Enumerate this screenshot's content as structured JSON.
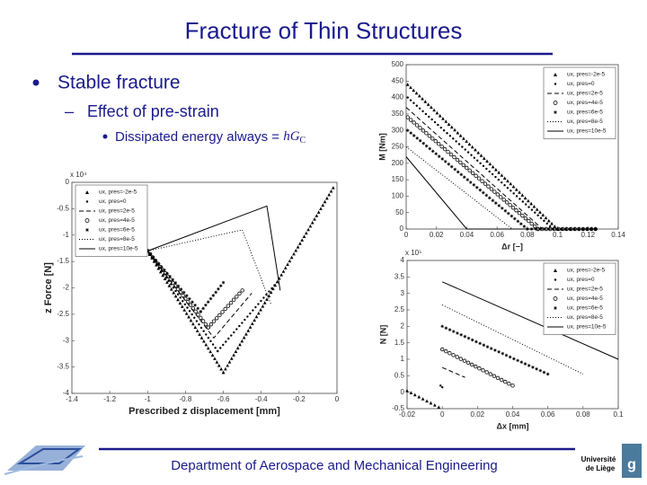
{
  "slide": {
    "title": "Fracture of Thin Structures",
    "bullet1": "Stable fracture",
    "bullet2": "Effect of pre-strain",
    "bullet3": {
      "text": "Dissipated energy always = ",
      "base": "hG",
      "sub": "C"
    },
    "footer": "Department of Aerospace and Mechanical Engineering",
    "logo_right": [
      "Université",
      "de Liège"
    ]
  },
  "chart_data": [
    {
      "type": "line",
      "xlabel": "Δr [−]",
      "ylabel": "M [Nm]",
      "xlim": [
        0,
        0.14
      ],
      "ylim": [
        0,
        500
      ],
      "xticks": [
        0,
        0.02,
        0.04,
        0.06,
        0.08,
        0.1,
        0.12,
        0.14
      ],
      "yticks": [
        0,
        50,
        100,
        150,
        200,
        250,
        300,
        350,
        400,
        450,
        500
      ],
      "legend": "upper right",
      "series": [
        {
          "name": "ux, pres=-2e-5",
          "color": "#000000",
          "marker": "triangle",
          "line": "none",
          "x": [
            0.001,
            0.1,
            0.125
          ],
          "values": [
            440,
            0,
            0
          ]
        },
        {
          "name": "ux, pres=0",
          "color": "#000000",
          "marker": "dot",
          "line": "none",
          "x": [
            0.001,
            0.097,
            0.125
          ],
          "values": [
            400,
            0,
            0
          ]
        },
        {
          "name": "ux, pres=2e-5",
          "color": "#000000",
          "marker": "none",
          "line": "dashed",
          "x": [
            0,
            0.09,
            0.125
          ],
          "values": [
            370,
            0,
            0
          ]
        },
        {
          "name": "ux, pres=4e-5",
          "color": "#000000",
          "marker": "circle",
          "line": "none",
          "x": [
            0.001,
            0.087,
            0.125
          ],
          "values": [
            340,
            0,
            0
          ]
        },
        {
          "name": "ux, pres=6e-5",
          "color": "#000000",
          "marker": "star",
          "line": "none",
          "x": [
            0.001,
            0.08,
            0.125
          ],
          "values": [
            300,
            0,
            0
          ]
        },
        {
          "name": "ux, pres=8e-5",
          "color": "#000000",
          "marker": "none",
          "line": "dotted",
          "x": [
            0,
            0.07,
            0.125
          ],
          "values": [
            250,
            0,
            0
          ]
        },
        {
          "name": "ux, pres=10e-5",
          "color": "#000000",
          "marker": "none",
          "line": "solid",
          "x": [
            0,
            0.04,
            0.125
          ],
          "values": [
            220,
            0,
            0
          ]
        }
      ]
    },
    {
      "type": "line",
      "xlabel": "Δx [mm]",
      "ylabel": "N [N]",
      "exponent": "x 10⁵",
      "xlim": [
        -0.02,
        0.1
      ],
      "ylim": [
        -0.5,
        4
      ],
      "xticks": [
        -0.02,
        0,
        0.02,
        0.04,
        0.06,
        0.08,
        0.1
      ],
      "yticks": [
        -0.5,
        0,
        0.5,
        1,
        1.5,
        2,
        2.5,
        3,
        3.5,
        4
      ],
      "legend": "upper right",
      "series": [
        {
          "name": "ux, pres=-2e-5",
          "color": "#000000",
          "marker": "triangle",
          "line": "none",
          "x": [
            -0.02,
            -0.002
          ],
          "values": [
            0.05,
            -0.45
          ]
        },
        {
          "name": "ux, pres=0",
          "color": "#000000",
          "marker": "dot",
          "line": "none",
          "x": [
            -0.001,
            0
          ],
          "values": [
            0.2,
            0.15
          ]
        },
        {
          "name": "ux, pres=2e-5",
          "color": "#000000",
          "marker": "none",
          "line": "dashed",
          "x": [
            0,
            0.013
          ],
          "values": [
            0.75,
            0.45
          ]
        },
        {
          "name": "ux, pres=4e-5",
          "color": "#000000",
          "marker": "circle",
          "line": "none",
          "x": [
            0,
            0.04
          ],
          "values": [
            1.3,
            0.2
          ]
        },
        {
          "name": "ux, pres=6e-5",
          "color": "#000000",
          "marker": "star",
          "line": "none",
          "x": [
            0,
            0.06
          ],
          "values": [
            2.0,
            0.55
          ]
        },
        {
          "name": "ux, pres=8e-5",
          "color": "#000000",
          "marker": "none",
          "line": "dotted",
          "x": [
            0,
            0.08
          ],
          "values": [
            2.65,
            0.55
          ]
        },
        {
          "name": "ux, pres=10e-5",
          "color": "#000000",
          "marker": "none",
          "line": "solid",
          "x": [
            0,
            0.1
          ],
          "values": [
            3.35,
            1.0
          ]
        }
      ]
    },
    {
      "type": "line",
      "xlabel": "Prescribed z displacement [mm]",
      "ylabel": "z Force [N]",
      "exponent": "x 10⁴",
      "xlim": [
        -1.4,
        0
      ],
      "ylim": [
        -4,
        0
      ],
      "xticks": [
        -1.4,
        -1.2,
        -1,
        -0.8,
        -0.6,
        -0.4,
        -0.2,
        0
      ],
      "yticks": [
        0,
        -0.5,
        -1,
        -1.5,
        -2,
        -2.5,
        -3,
        -3.5,
        -4
      ],
      "legend": "upper left",
      "series": [
        {
          "name": "ux, pres=-2e-5",
          "color": "#000000",
          "marker": "triangle",
          "line": "none",
          "x": [
            -1.0,
            -0.6,
            -0.02
          ],
          "values": [
            -1.3,
            -3.6,
            -0.1
          ]
        },
        {
          "name": "ux, pres=0",
          "color": "#000000",
          "marker": "dot",
          "line": "none",
          "x": [
            -1.0,
            -0.63,
            -0.33
          ],
          "values": [
            -1.3,
            -3.2,
            -1.95
          ]
        },
        {
          "name": "ux, pres=2e-5",
          "color": "#000000",
          "marker": "none",
          "line": "dashed",
          "x": [
            -1.0,
            -0.65,
            -0.45
          ],
          "values": [
            -1.3,
            -2.95,
            -2.1
          ]
        },
        {
          "name": "ux, pres=4e-5",
          "color": "#000000",
          "marker": "circle",
          "line": "none",
          "x": [
            -1.0,
            -0.68,
            -0.5
          ],
          "values": [
            -1.3,
            -2.75,
            -2.05
          ]
        },
        {
          "name": "ux, pres=6e-5",
          "color": "#000000",
          "marker": "star",
          "line": "none",
          "x": [
            -1.0,
            -0.72,
            -0.6
          ],
          "values": [
            -1.3,
            -2.45,
            -1.9
          ]
        },
        {
          "name": "ux, pres=8e-5",
          "color": "#000000",
          "marker": "none",
          "line": "dotted",
          "x": [
            -1.0,
            -0.5,
            -0.35
          ],
          "values": [
            -1.3,
            -0.9,
            -2.3
          ]
        },
        {
          "name": "ux, pres=10e-5",
          "color": "#000000",
          "marker": "none",
          "line": "solid",
          "x": [
            -1.0,
            -0.37,
            -0.3
          ],
          "values": [
            -1.3,
            -0.45,
            -2.05
          ]
        }
      ]
    }
  ]
}
